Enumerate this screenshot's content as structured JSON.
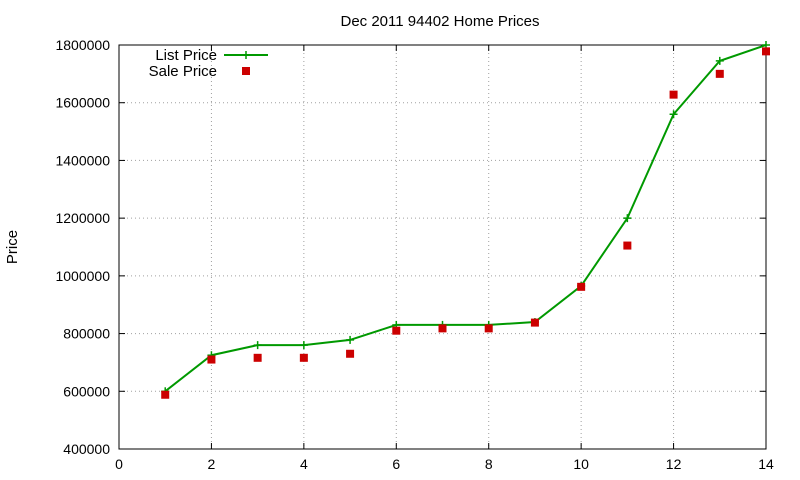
{
  "chart_data": {
    "type": "line",
    "title": "Dec 2011 94402 Home Prices",
    "xlabel": "",
    "ylabel": "Price",
    "xlim": [
      0,
      14
    ],
    "ylim": [
      400000,
      1800000
    ],
    "xticks": [
      "0",
      "2",
      "4",
      "6",
      "8",
      "10",
      "12",
      "14"
    ],
    "yticks": [
      "400000",
      "600000",
      "800000",
      "1000000",
      "1200000",
      "1400000",
      "1600000",
      "1800000"
    ],
    "grid": true,
    "legend_position": "top-left",
    "series": [
      {
        "name": "List Price",
        "style": "line-points",
        "marker": "plus",
        "color": "#009900",
        "x": [
          1,
          2,
          3,
          4,
          5,
          6,
          7,
          8,
          9,
          10,
          11,
          12,
          13,
          14
        ],
        "y": [
          600000,
          725000,
          760000,
          760000,
          778000,
          830000,
          830000,
          830000,
          840000,
          965000,
          1200000,
          1560000,
          1745000,
          1800000
        ]
      },
      {
        "name": "Sale Price",
        "style": "points",
        "marker": "square",
        "color": "#cc0000",
        "x": [
          1,
          2,
          3,
          4,
          5,
          6,
          7,
          8,
          9,
          10,
          11,
          12,
          13,
          14
        ],
        "y": [
          588000,
          710000,
          716000,
          716000,
          730000,
          810000,
          818000,
          818000,
          838000,
          962000,
          1105000,
          1628000,
          1700000,
          1778000
        ]
      }
    ]
  }
}
